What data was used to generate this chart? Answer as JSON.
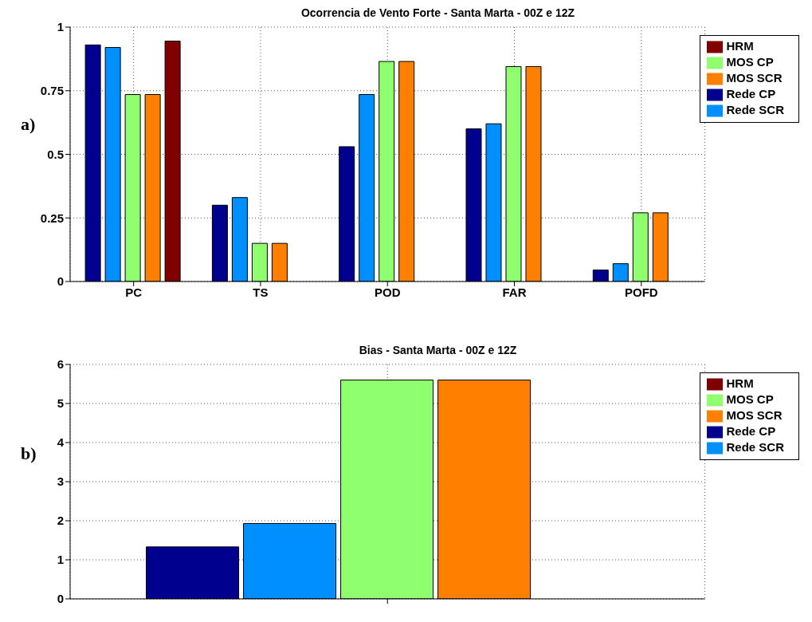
{
  "chart_data": [
    {
      "type": "bar",
      "title": "Ocorrencia de Vento Forte - Santa Marta - 00Z e 12Z",
      "annotations": [
        "a)"
      ],
      "categories": [
        "PC",
        "TS",
        "POD",
        "FAR",
        "POFD"
      ],
      "series": [
        {
          "name": "Rede CP",
          "color": "#00008f",
          "values": [
            0.93,
            0.3,
            0.53,
            0.6,
            0.045
          ]
        },
        {
          "name": "Rede SCR",
          "color": "#008fff",
          "values": [
            0.92,
            0.33,
            0.735,
            0.62,
            0.07
          ]
        },
        {
          "name": "MOS CP",
          "color": "#8fff70",
          "values": [
            0.735,
            0.15,
            0.865,
            0.845,
            0.27
          ]
        },
        {
          "name": "MOS SCR",
          "color": "#ff8000",
          "values": [
            0.735,
            0.15,
            0.865,
            0.845,
            0.27
          ]
        },
        {
          "name": "HRM",
          "color": "#800000",
          "values": [
            0.945,
            null,
            null,
            null,
            null
          ]
        }
      ],
      "ylim": [
        0,
        1
      ],
      "yticks": [
        0,
        0.25,
        0.5,
        0.75,
        1
      ],
      "grid": true,
      "legend": "top right"
    },
    {
      "type": "bar",
      "title": "Bias  - Santa Marta - 00Z e 12Z",
      "annotations": [
        "b)"
      ],
      "categories": [
        null
      ],
      "series": [
        {
          "name": "Rede CP",
          "color": "#00008f",
          "values": [
            1.33
          ]
        },
        {
          "name": "Rede SCR",
          "color": "#008fff",
          "values": [
            1.93
          ]
        },
        {
          "name": "MOS CP",
          "color": "#8fff70",
          "values": [
            5.6
          ]
        },
        {
          "name": "MOS SCR",
          "color": "#ff8000",
          "values": [
            5.6
          ]
        },
        {
          "name": "HRM",
          "color": "#800000",
          "values": [
            null
          ]
        }
      ],
      "ylim": [
        0,
        6
      ],
      "yticks": [
        0,
        1,
        2,
        3,
        4,
        5,
        6
      ],
      "grid": true,
      "legend": "top right"
    }
  ]
}
